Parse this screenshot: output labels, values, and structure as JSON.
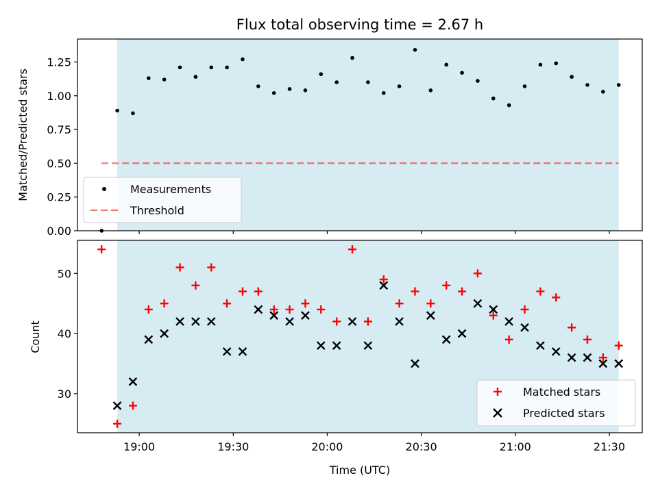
{
  "chart_data": {
    "type": "scatter",
    "title": "Flux total observing time = 2.67 h",
    "xlabel": "Time (UTC)",
    "x_ticks": [
      "19:00",
      "19:30",
      "20:00",
      "20:30",
      "21:00",
      "21:30"
    ],
    "shaded_interval": [
      "18:53",
      "21:33"
    ],
    "colors": {
      "span": "#add8e6",
      "threshold": "#ff0000",
      "matched": "#ff0000",
      "predicted": "#000000",
      "measurement": "#000000"
    },
    "top_panel": {
      "ylabel": "Matched/Predicted stars",
      "ylim": [
        0,
        1.42
      ],
      "y_ticks": [
        "0.00",
        "0.25",
        "0.50",
        "0.75",
        "1.00",
        "1.25"
      ],
      "measurements": {
        "label": "Measurements",
        "x": [
          "18:48",
          "18:53",
          "18:58",
          "19:03",
          "19:08",
          "19:13",
          "19:18",
          "19:23",
          "19:28",
          "19:33",
          "19:38",
          "19:43",
          "19:48",
          "19:53",
          "19:58",
          "20:03",
          "20:08",
          "20:13",
          "20:18",
          "20:23",
          "20:28",
          "20:33",
          "20:38",
          "20:43",
          "20:48",
          "20:53",
          "20:58",
          "21:03",
          "21:08",
          "21:13",
          "21:18",
          "21:23",
          "21:28",
          "21:33"
        ],
        "y": [
          0.0,
          0.89,
          0.87,
          1.13,
          1.12,
          1.21,
          1.14,
          1.21,
          1.21,
          1.27,
          1.07,
          1.02,
          1.05,
          1.04,
          1.16,
          1.1,
          1.28,
          1.1,
          1.02,
          1.07,
          1.34,
          1.04,
          1.23,
          1.17,
          1.11,
          0.98,
          0.93,
          1.07,
          1.23,
          1.24,
          1.14,
          1.08,
          1.03,
          1.08
        ]
      },
      "threshold": {
        "label": "Threshold",
        "value": 0.5,
        "x_range": [
          "18:48",
          "21:33"
        ]
      }
    },
    "bottom_panel": {
      "ylabel": "Count",
      "ylim": [
        23.5,
        55.5
      ],
      "y_ticks": [
        "30",
        "40",
        "50"
      ],
      "matched": {
        "label": "Matched stars",
        "x": [
          "18:48",
          "18:53",
          "18:58",
          "19:03",
          "19:08",
          "19:13",
          "19:18",
          "19:23",
          "19:28",
          "19:33",
          "19:38",
          "19:43",
          "19:48",
          "19:53",
          "19:58",
          "20:03",
          "20:08",
          "20:13",
          "20:18",
          "20:23",
          "20:28",
          "20:33",
          "20:38",
          "20:43",
          "20:48",
          "20:53",
          "20:58",
          "21:03",
          "21:08",
          "21:13",
          "21:18",
          "21:23",
          "21:28",
          "21:33"
        ],
        "y": [
          54,
          25,
          28,
          44,
          45,
          51,
          48,
          51,
          45,
          47,
          47,
          44,
          44,
          45,
          44,
          42,
          54,
          42,
          49,
          45,
          47,
          45,
          48,
          47,
          50,
          43,
          39,
          44,
          47,
          46,
          41,
          39,
          36,
          38
        ]
      },
      "predicted": {
        "label": "Predicted stars",
        "x": [
          "18:53",
          "18:58",
          "19:03",
          "19:08",
          "19:13",
          "19:18",
          "19:23",
          "19:28",
          "19:33",
          "19:38",
          "19:43",
          "19:48",
          "19:53",
          "19:58",
          "20:03",
          "20:08",
          "20:13",
          "20:18",
          "20:23",
          "20:28",
          "20:33",
          "20:38",
          "20:43",
          "20:48",
          "20:53",
          "20:58",
          "21:03",
          "21:08",
          "21:13",
          "21:18",
          "21:23",
          "21:28",
          "21:33"
        ],
        "y": [
          28,
          32,
          39,
          40,
          42,
          42,
          42,
          37,
          37,
          44,
          43,
          42,
          43,
          38,
          38,
          42,
          38,
          48,
          42,
          35,
          43,
          39,
          40,
          45,
          44,
          42,
          41,
          38,
          37,
          36,
          36,
          35,
          35
        ]
      }
    }
  }
}
